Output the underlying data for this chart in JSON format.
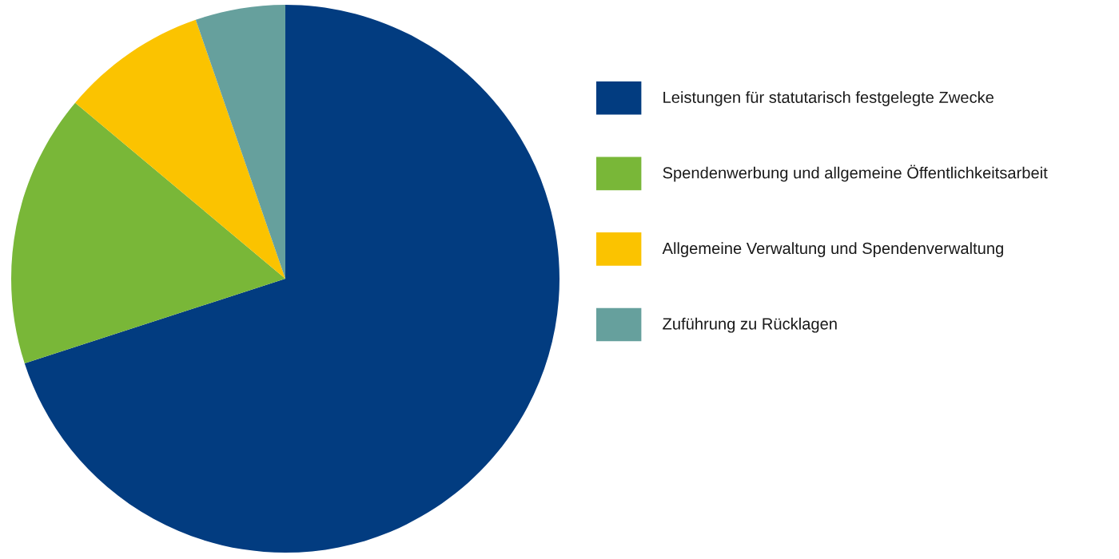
{
  "chart_data": {
    "type": "pie",
    "categories": [
      "Leistungen für statutarisch festgelegte Zwecke",
      "Spendenwerbung und allgemeine Öffentlichkeitsarbeit",
      "Allgemeine Verwaltung und Spendenverwaltung",
      "Zuführung zu Rücklagen"
    ],
    "values": [
      70.0,
      16.1,
      8.6,
      5.3
    ],
    "colors": [
      "#023c80",
      "#79b738",
      "#fbc300",
      "#66a09d"
    ],
    "legend": "right"
  }
}
